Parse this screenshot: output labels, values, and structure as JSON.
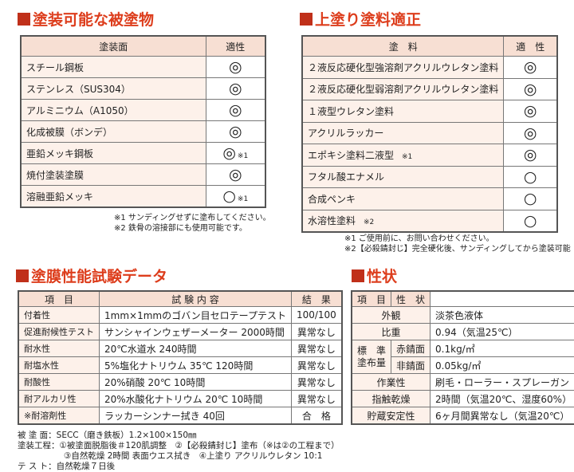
{
  "coatable_surfaces": {
    "title": "塗装可能な被塗物",
    "headers": [
      "塗装面",
      "適性"
    ],
    "rows": [
      {
        "surface": "スチール鋼板",
        "rating": "◎"
      },
      {
        "surface": "ステンレス（SUS304）",
        "rating": "◎"
      },
      {
        "surface": "アルミニウム（A1050）",
        "rating": "◎"
      },
      {
        "surface": "化成被膜（ボンデ）",
        "rating": "◎"
      },
      {
        "surface": "亜鉛メッキ鋼板",
        "rating": "◎",
        "note": "※1"
      },
      {
        "surface": "焼付塗装塗膜",
        "rating": "◎"
      },
      {
        "surface": "溶融亜鉛メッキ",
        "rating": "○",
        "note": "※1"
      }
    ],
    "notes": [
      "※1 サンディングせずに塗布してください。",
      "※2 鉄骨の溶接部にも使用可能です。"
    ]
  },
  "topcoats": {
    "title": "上塗り塗料適正",
    "headers": [
      "塗　料",
      "適　性"
    ],
    "rows": [
      {
        "paint": "２液反応硬化型強溶剤アクリルウレタン塗料",
        "rating": "◎"
      },
      {
        "paint": "２液反応硬化型弱溶剤アクリルウレタン塗料",
        "rating": "◎"
      },
      {
        "paint": "１液型ウレタン塗料",
        "rating": "◎"
      },
      {
        "paint": "アクリルラッカー",
        "rating": "◎"
      },
      {
        "paint": "エポキシ塗料二液型",
        "note": "※1",
        "rating": "◎"
      },
      {
        "paint": "フタル酸エナメル",
        "rating": "○"
      },
      {
        "paint": "合成ペンキ",
        "rating": "○"
      },
      {
        "paint": "水溶性塗料",
        "note": "※2",
        "rating": "○"
      }
    ],
    "notes": [
      "※1 ご使用前に、お問い合わせください。",
      "※2【必殺錆封じ】完全硬化後、サンディングしてから塗装可能"
    ]
  },
  "test_data": {
    "title": "塗膜性能試験データ",
    "headers": [
      "項　目",
      "試 験 内 容",
      "結　果"
    ],
    "rows": [
      [
        "付着性",
        "1mm×1mmのゴバン目セロテープテスト",
        "100/100"
      ],
      [
        "促進耐候性テスト",
        "サンシャインウェザーメーター 2000時間",
        "異常なし"
      ],
      [
        "耐水性",
        "20℃水道水 240時間",
        "異常なし"
      ],
      [
        "耐塩水性",
        "5%塩化ナトリウム 35℃ 120時間",
        "異常なし"
      ],
      [
        "耐酸性",
        "20%硝酸 20℃ 10時間",
        "異常なし"
      ],
      [
        "耐アルカリ性",
        "20%水酸化ナトリウム 20℃ 10時間",
        "異常なし"
      ],
      [
        "※耐溶剤性",
        "ラッカーシンナー拭き 40回",
        "合　格"
      ]
    ],
    "conditions": [
      "被 塗 面：SECC（磨き鉄板）1.2×100×150㎜",
      "塗装工程：①被塗面脱脂後＃120肌調整　②【必殺錆封じ】塗布（※は②の工程まで）",
      "③自然乾燥 2時間 表面ウエス拭き　④上塗り アクリルウレタン 10:1",
      "テ ス ト：自然乾燥７日後"
    ]
  },
  "properties": {
    "title": "性状",
    "headers": [
      "項　目",
      "性　状"
    ],
    "rows": [
      [
        "外観",
        "淡茶色液体"
      ],
      [
        "比重",
        "0.94（気温25℃）"
      ],
      {
        "label": "標　準\n塗布量",
        "sub": [
          [
            "赤錆面",
            "0.1kg/㎡"
          ],
          [
            "非錆面",
            "0.05kg/㎡"
          ]
        ]
      },
      [
        "作業性",
        "刷毛・ローラー・スプレーガン"
      ],
      [
        "指触乾燥",
        "2時間（気温20℃、湿度60%）"
      ],
      [
        "貯蔵安定性",
        "6ヶ月間異常なし（気温20℃）"
      ]
    ]
  }
}
